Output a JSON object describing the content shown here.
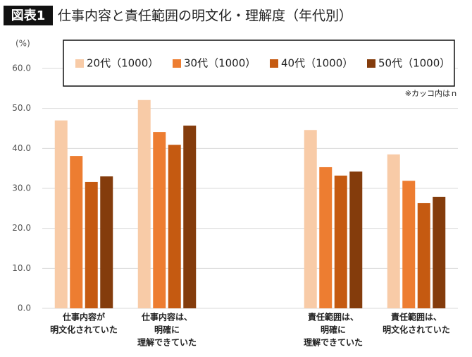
{
  "chart_data": {
    "type": "bar",
    "badge": "図表1",
    "title": "仕事内容と責任範囲の明文化・理解度（年代別）",
    "y_unit": "(%)",
    "note": "※カッコ内はｎ",
    "categories": [
      [
        "仕事内容が",
        "明文化されていた"
      ],
      [
        "仕事内容は、",
        "明確に",
        "理解できていた"
      ],
      null,
      [
        "責任範囲は、",
        "明確に",
        "理解できていた"
      ],
      [
        "責任範囲は、",
        "明文化されていた"
      ]
    ],
    "series": [
      {
        "name": "20代（1000）",
        "color": "#f8cba7",
        "values": [
          47.0,
          52.1,
          null,
          44.6,
          38.5
        ]
      },
      {
        "name": "30代（1000）",
        "color": "#ed7d31",
        "values": [
          38.1,
          44.1,
          null,
          35.3,
          31.9
        ]
      },
      {
        "name": "40代（1000）",
        "color": "#c55a11",
        "values": [
          31.6,
          40.9,
          null,
          33.2,
          26.3
        ]
      },
      {
        "name": "50代（1000）",
        "color": "#843c0c",
        "values": [
          33.0,
          45.7,
          null,
          34.2,
          27.9
        ]
      }
    ],
    "ylim": [
      0,
      60
    ],
    "yticks": [
      {
        "value": 0,
        "label": "0.0"
      },
      {
        "value": 10,
        "label": "10.0"
      },
      {
        "value": 20,
        "label": "20.0"
      },
      {
        "value": 30,
        "label": "30.0"
      },
      {
        "value": 40,
        "label": "40.0"
      },
      {
        "value": 50,
        "label": "50.0"
      },
      {
        "value": 60,
        "label": "60.0"
      }
    ],
    "grid": true
  }
}
